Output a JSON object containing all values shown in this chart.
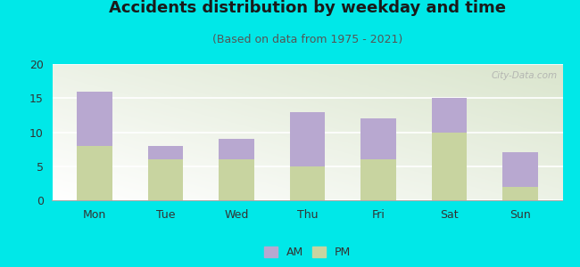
{
  "title": "Accidents distribution by weekday and time",
  "subtitle": "(Based on data from 1975 - 2021)",
  "categories": [
    "Mon",
    "Tue",
    "Wed",
    "Thu",
    "Fri",
    "Sat",
    "Sun"
  ],
  "pm_values": [
    8,
    6,
    6,
    5,
    6,
    10,
    2
  ],
  "am_values": [
    8,
    2,
    3,
    8,
    6,
    5,
    5
  ],
  "am_color": "#b8a8d0",
  "pm_color": "#c8d4a0",
  "background_outer": "#00e8e8",
  "ylim": [
    0,
    20
  ],
  "yticks": [
    0,
    5,
    10,
    15,
    20
  ],
  "bar_width": 0.5,
  "title_fontsize": 13,
  "subtitle_fontsize": 9,
  "tick_fontsize": 9,
  "legend_fontsize": 9,
  "watermark": "City-Data.com"
}
